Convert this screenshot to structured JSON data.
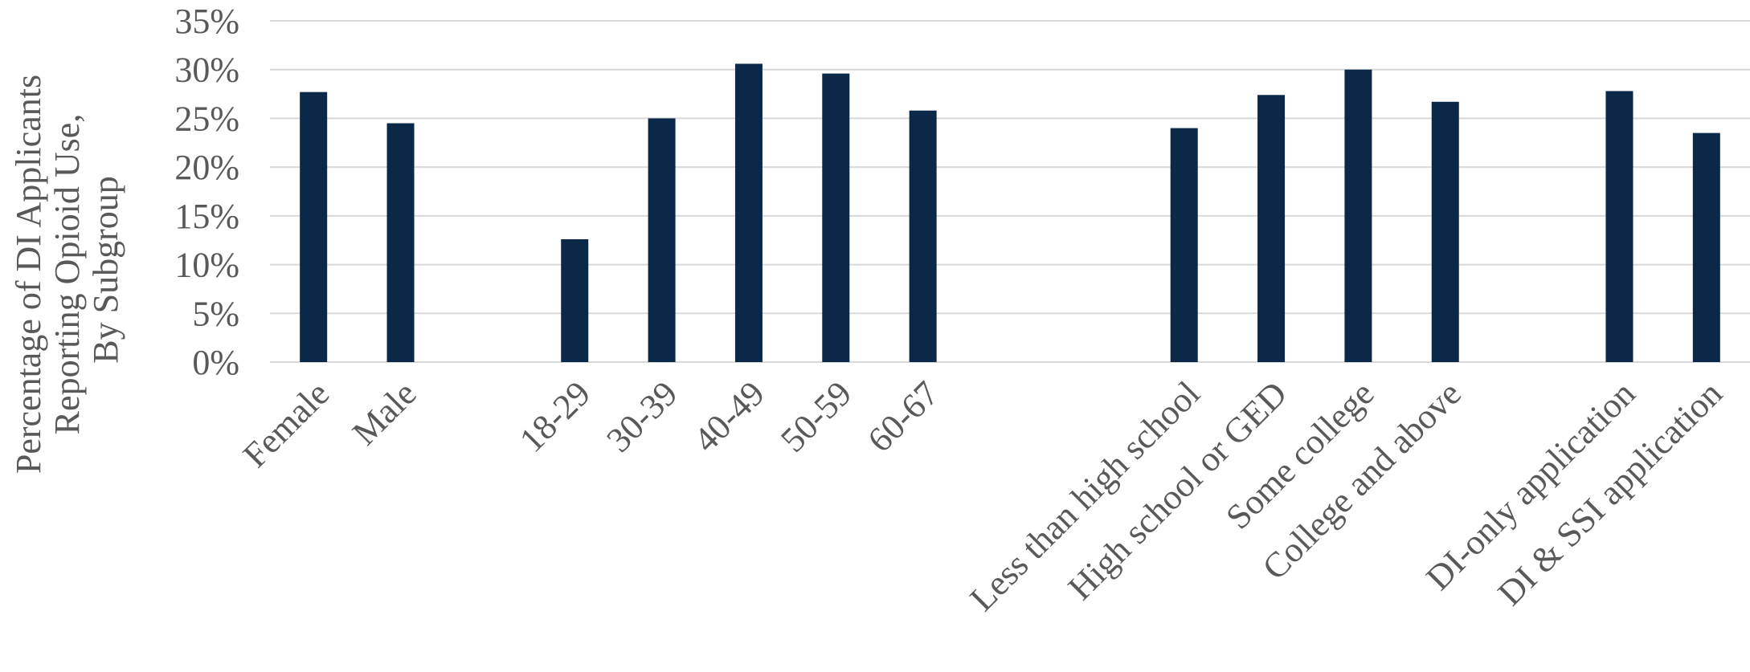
{
  "chart_data": {
    "type": "bar",
    "title": "",
    "xlabel": "",
    "ylabel_lines": [
      "Percentage of DI Applicants",
      "Reporting Opioid Use,",
      "By Subgroup"
    ],
    "ylim": [
      0,
      35
    ],
    "yticks": [
      "0%",
      "5%",
      "10%",
      "15%",
      "20%",
      "25%",
      "30%",
      "35%"
    ],
    "grid": true,
    "bar_color": "#0b2849",
    "gridline_color": "#d9d9d9",
    "text_color": "#595959",
    "categories": [
      "Female",
      "Male",
      "",
      "18-29",
      "30-39",
      "40-49",
      "50-59",
      "60-67",
      "",
      "",
      "Less than high school",
      "High school or GED",
      "Some college",
      "College and above",
      "",
      "DI-only application",
      "DI & SSI application"
    ],
    "values": [
      27.7,
      24.5,
      null,
      12.6,
      25.0,
      30.6,
      29.6,
      25.8,
      null,
      null,
      24.0,
      27.4,
      30.0,
      26.7,
      null,
      27.8,
      23.5
    ]
  }
}
